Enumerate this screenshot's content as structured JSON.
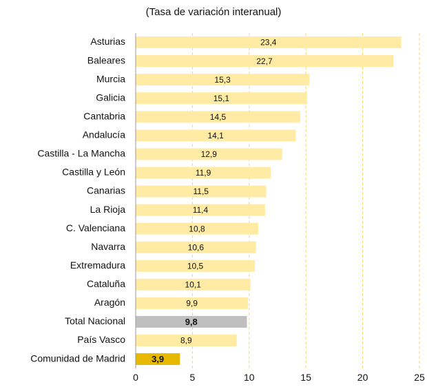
{
  "chart_data": {
    "type": "hbar",
    "subtitle": "(Tasa de variación interanual)",
    "categories": [
      "Asturias",
      "Baleares",
      "Murcia",
      "Galicia",
      "Cantabria",
      "Andalucía",
      "Castilla - La Mancha",
      "Castilla y León",
      "Canarias",
      "La Rioja",
      "C. Valenciana",
      "Navarra",
      "Extremadura",
      "Cataluña",
      "Aragón",
      "Total Nacional",
      "País Vasco",
      "Comunidad de Madrid"
    ],
    "values": [
      23.4,
      22.7,
      15.3,
      15.1,
      14.5,
      14.1,
      12.9,
      11.9,
      11.5,
      11.4,
      10.8,
      10.6,
      10.5,
      10.1,
      9.9,
      9.8,
      8.9,
      3.9
    ],
    "value_labels": [
      "23,4",
      "22,7",
      "15,3",
      "15,1",
      "14,5",
      "14,1",
      "12,9",
      "11,9",
      "11,5",
      "11,4",
      "10,8",
      "10,6",
      "10,5",
      "10,1",
      "9,9",
      "9,8",
      "8,9",
      "3,9"
    ],
    "colors": [
      "#ffeba3",
      "#ffeba3",
      "#ffeba3",
      "#ffeba3",
      "#ffeba3",
      "#ffeba3",
      "#ffeba3",
      "#ffeba3",
      "#ffeba3",
      "#ffeba3",
      "#ffeba3",
      "#ffeba3",
      "#ffeba3",
      "#ffeba3",
      "#ffeba3",
      "#bfbfbf",
      "#ffeba3",
      "#e6b800"
    ],
    "label_bold": [
      false,
      false,
      false,
      false,
      false,
      false,
      false,
      false,
      false,
      false,
      false,
      false,
      false,
      false,
      false,
      true,
      false,
      true
    ],
    "xlim": [
      0,
      25
    ],
    "xticks": [
      0,
      5,
      10,
      15,
      20,
      25
    ],
    "grid": true
  }
}
